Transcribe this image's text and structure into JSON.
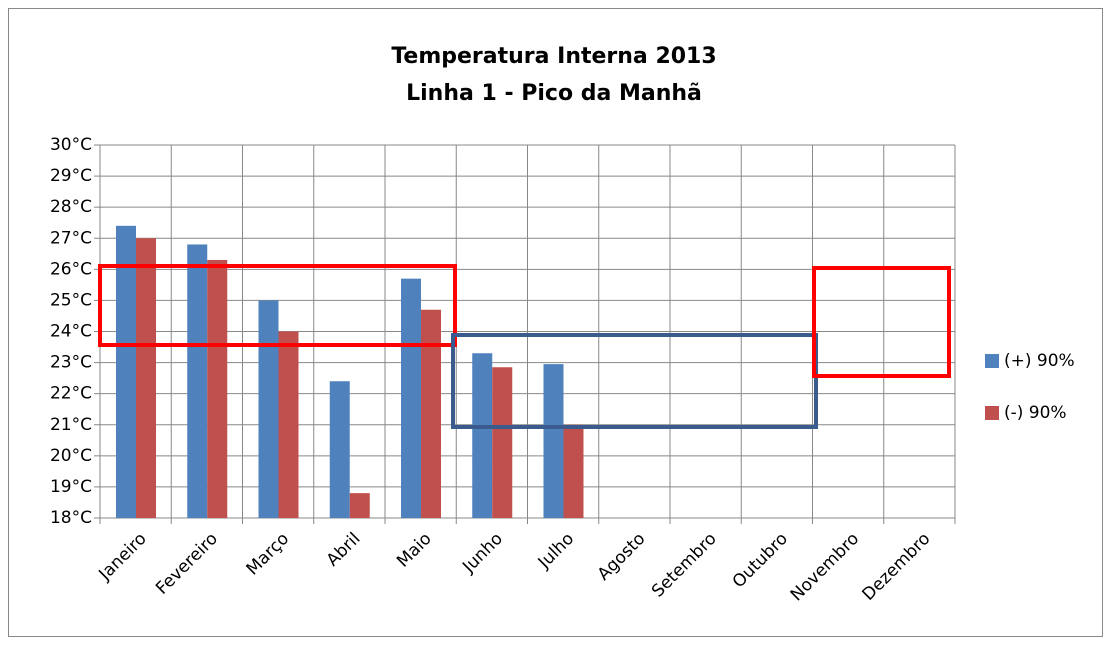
{
  "chart_data": {
    "type": "bar",
    "title": "Temperatura Interna 2013",
    "subtitle": "Linha 1 - Pico da Manhã",
    "categories": [
      "Janeiro",
      "Fevereiro",
      "Março",
      "Abril",
      "Maio",
      "Junho",
      "Julho",
      "Agosto",
      "Setembro",
      "Outubro",
      "Novembro",
      "Dezembro"
    ],
    "series": [
      {
        "name": "(+) 90%",
        "color": "#4f81bd",
        "values": [
          27.4,
          26.8,
          25.0,
          22.4,
          25.7,
          23.3,
          22.95,
          null,
          null,
          null,
          null,
          null
        ]
      },
      {
        "name": "(-) 90%",
        "color": "#c0504d",
        "values": [
          27.0,
          26.3,
          24.0,
          18.8,
          24.7,
          22.85,
          21.0,
          null,
          null,
          null,
          null,
          null
        ]
      }
    ],
    "ylim": [
      18,
      30
    ],
    "yticks": [
      {
        "value": 18,
        "label": "18°C"
      },
      {
        "value": 19,
        "label": "19°C"
      },
      {
        "value": 20,
        "label": "20°C"
      },
      {
        "value": 21,
        "label": "21°C"
      },
      {
        "value": 22,
        "label": "22°C"
      },
      {
        "value": 23,
        "label": "23°C"
      },
      {
        "value": 24,
        "label": "24°C"
      },
      {
        "value": 25,
        "label": "25°C"
      },
      {
        "value": 26,
        "label": "26°C"
      },
      {
        "value": 27,
        "label": "27°C"
      },
      {
        "value": 28,
        "label": "28°C"
      },
      {
        "value": 29,
        "label": "29°C"
      },
      {
        "value": 30,
        "label": "30°C"
      }
    ],
    "grid": true,
    "legend": "right"
  }
}
